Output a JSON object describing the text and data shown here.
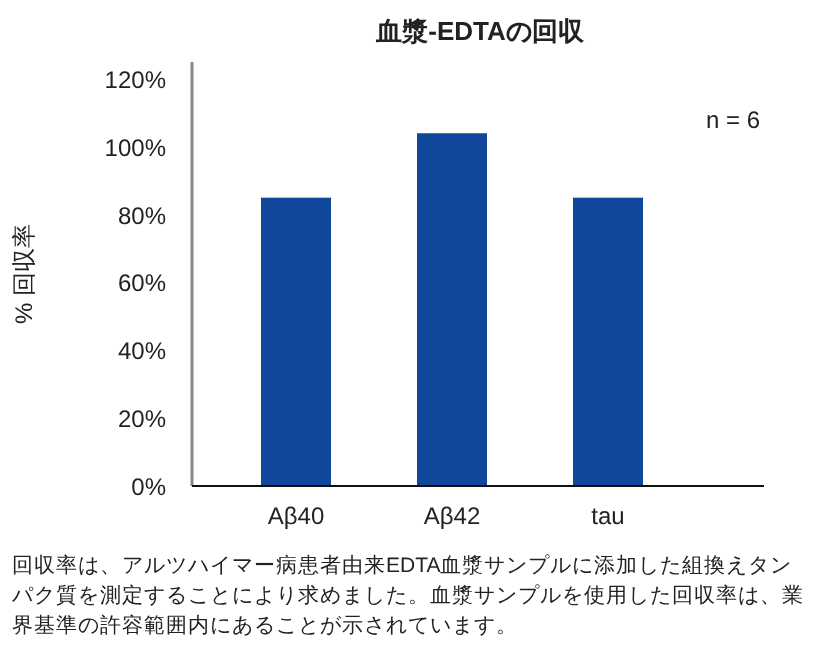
{
  "chart_data": {
    "type": "bar",
    "title": "血漿-EDTAの回収",
    "ylabel": "% 回収率",
    "categories": [
      "Aβ40",
      "Aβ42",
      "tau"
    ],
    "values": [
      85,
      104,
      85
    ],
    "color": "#10479a",
    "ylim": [
      0,
      125
    ],
    "yticks": [
      {
        "value": 0,
        "label": "0%"
      },
      {
        "value": 20,
        "label": "20%"
      },
      {
        "value": 40,
        "label": "40%"
      },
      {
        "value": 60,
        "label": "60%"
      },
      {
        "value": 80,
        "label": "80%"
      },
      {
        "value": 100,
        "label": "100%"
      },
      {
        "value": 120,
        "label": "120%"
      }
    ],
    "grid": false,
    "annotations": [
      "n = 6",
      "回収率は、アルツハイマー病患者由来EDTA血漿サンプルに添加した組換えタンパク質を測定することにより求めました。血漿サンプルを使用した回収率は、業界基準の許容範囲内にあることが示されています。"
    ]
  }
}
